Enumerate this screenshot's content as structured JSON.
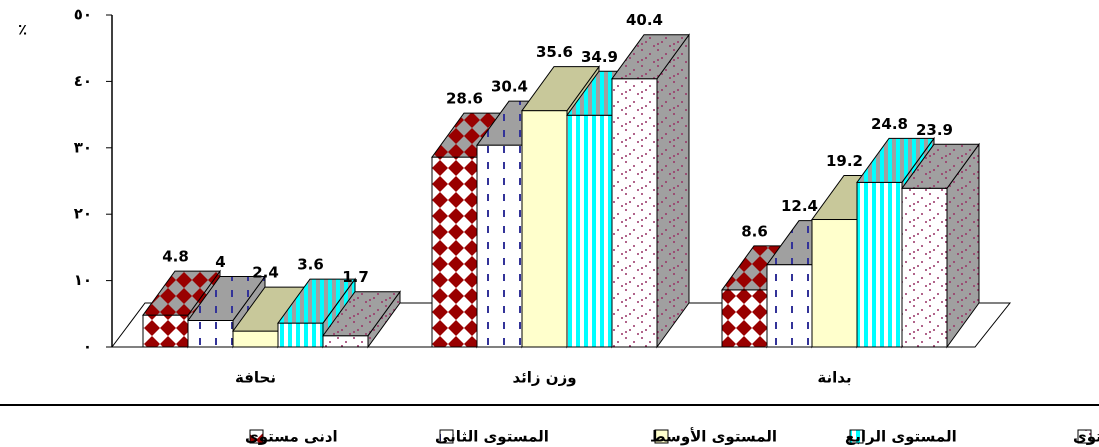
{
  "chart_data": {
    "type": "bar3d",
    "ylabel": "٪",
    "categories": [
      "نحافة",
      "وزن زائد",
      "بدانة"
    ],
    "series": [
      {
        "name": "ادنى مستوى",
        "color": "#990000",
        "values": [
          4.8,
          28.6,
          8.6
        ]
      },
      {
        "name": "المستوى الثانى",
        "color": "#333399",
        "values": [
          4,
          30.4,
          12.4
        ]
      },
      {
        "name": "المستوى الأوسط",
        "color": "#ffffcc",
        "values": [
          2.4,
          35.6,
          19.2
        ]
      },
      {
        "name": "المستوى الرابع",
        "color": "#00ffff",
        "values": [
          3.6,
          34.9,
          24.8
        ]
      },
      {
        "name": "أعلى مستوى",
        "color": "#993366",
        "values": [
          1.7,
          40.4,
          23.9
        ]
      }
    ],
    "ylim": [
      0,
      50
    ],
    "yticks": [
      {
        "value": 0,
        "label": "٠"
      },
      {
        "value": 10,
        "label": "١٠"
      },
      {
        "value": 20,
        "label": "٢٠"
      },
      {
        "value": 30,
        "label": "٣٠"
      },
      {
        "value": 40,
        "label": "٤٠"
      },
      {
        "value": 50,
        "label": "٥٠"
      }
    ]
  }
}
